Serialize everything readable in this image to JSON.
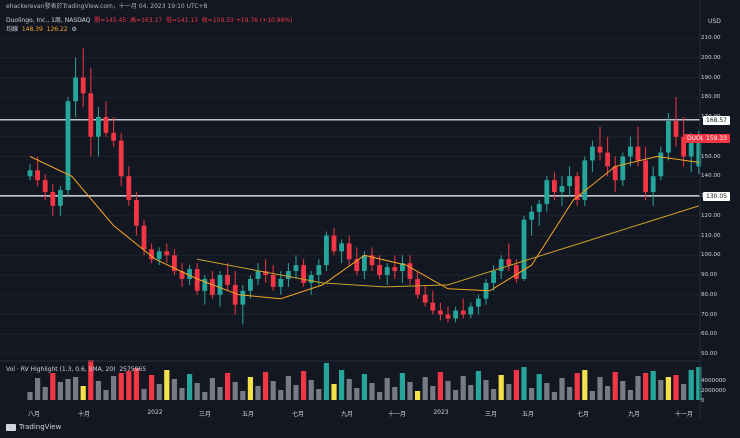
{
  "header": {
    "attribution": "ehackerevan發表於TradingView.com，十一月 04, 2023 19:10 UTC+8",
    "currency": "USD"
  },
  "symbol_info": {
    "name": "Duolingo, Inc., 1周, NASDAQ",
    "open": "開=145.45",
    "high": "高=163.17",
    "low": "低=141.13",
    "close": "收=159.33",
    "change": "+19.76 (+10.98%)"
  },
  "ma_info": {
    "label": "均線",
    "v1": "148.39",
    "v2": "126.22",
    "icon": "settings-icon"
  },
  "volume_info": {
    "label": "Vol · RV Highlight (1.3, 0.6, SMA, 20)",
    "value": "2575965"
  },
  "y_ticks": [
    "210.00",
    "200.00",
    "190.00",
    "180.00",
    "170.00",
    "160.00",
    "150.00",
    "140.00",
    "130.00",
    "120.00",
    "110.00",
    "100.00",
    "90.00",
    "80.00",
    "70.00",
    "60.00",
    "50.00"
  ],
  "vol_ticks": [
    "4000000",
    "2000000",
    "0"
  ],
  "x_ticks": [
    "八月",
    "十月",
    "2022",
    "三月",
    "五月",
    "七月",
    "九月",
    "十一月",
    "2023",
    "三月",
    "五月",
    "七月",
    "九月",
    "十一月"
  ],
  "badges": {
    "upper_level": "168.57",
    "ticker": "DUOL",
    "last_price": "159.33",
    "lower_level": "130.05"
  },
  "footer": {
    "brand": "TradingView"
  },
  "colors": {
    "up": "#26a69a",
    "down": "#f23645",
    "bg": "#131722",
    "ma_fast": "#f5a623",
    "ma_slow": "#c9a227",
    "highlight": "#f5e14a",
    "avg_vol": "#777b85"
  },
  "chart_data": {
    "type": "candlestick",
    "interval": "weekly",
    "ylim": [
      45,
      215
    ],
    "horizontal_levels": [
      168.57,
      130.05
    ],
    "candles": [
      [
        140,
        146,
        138,
        143
      ],
      [
        143,
        150,
        135,
        138
      ],
      [
        138,
        141,
        128,
        132
      ],
      [
        132,
        136,
        120,
        125
      ],
      [
        125,
        135,
        120,
        133
      ],
      [
        133,
        180,
        130,
        178
      ],
      [
        178,
        200,
        170,
        190
      ],
      [
        190,
        205,
        175,
        182
      ],
      [
        182,
        195,
        150,
        160
      ],
      [
        160,
        175,
        150,
        170
      ],
      [
        170,
        178,
        160,
        162
      ],
      [
        162,
        170,
        155,
        158
      ],
      [
        158,
        162,
        135,
        140
      ],
      [
        140,
        145,
        125,
        128
      ],
      [
        128,
        132,
        110,
        115
      ],
      [
        115,
        118,
        100,
        103
      ],
      [
        103,
        106,
        96,
        98
      ],
      [
        98,
        104,
        95,
        102
      ],
      [
        102,
        106,
        96,
        100
      ],
      [
        100,
        103,
        90,
        92
      ],
      [
        92,
        96,
        84,
        88
      ],
      [
        88,
        95,
        85,
        93
      ],
      [
        93,
        96,
        80,
        82
      ],
      [
        82,
        90,
        75,
        88
      ],
      [
        88,
        92,
        78,
        80
      ],
      [
        80,
        92,
        74,
        90
      ],
      [
        90,
        96,
        82,
        85
      ],
      [
        85,
        92,
        70,
        75
      ],
      [
        75,
        85,
        65,
        82
      ],
      [
        82,
        90,
        78,
        88
      ],
      [
        88,
        96,
        85,
        92
      ],
      [
        92,
        98,
        86,
        90
      ],
      [
        90,
        95,
        82,
        84
      ],
      [
        84,
        92,
        80,
        88
      ],
      [
        88,
        96,
        84,
        92
      ],
      [
        92,
        100,
        88,
        95
      ],
      [
        95,
        98,
        84,
        86
      ],
      [
        86,
        92,
        80,
        90
      ],
      [
        90,
        98,
        85,
        95
      ],
      [
        95,
        112,
        92,
        110
      ],
      [
        110,
        114,
        100,
        102
      ],
      [
        102,
        108,
        96,
        106
      ],
      [
        106,
        110,
        95,
        98
      ],
      [
        98,
        104,
        90,
        92
      ],
      [
        92,
        102,
        88,
        100
      ],
      [
        100,
        104,
        92,
        95
      ],
      [
        95,
        100,
        88,
        90
      ],
      [
        90,
        96,
        85,
        94
      ],
      [
        94,
        100,
        88,
        92
      ],
      [
        92,
        100,
        86,
        96
      ],
      [
        96,
        100,
        85,
        88
      ],
      [
        88,
        92,
        78,
        80
      ],
      [
        80,
        85,
        74,
        76
      ],
      [
        76,
        82,
        70,
        72
      ],
      [
        72,
        76,
        67,
        70
      ],
      [
        70,
        74,
        66,
        68
      ],
      [
        68,
        74,
        66,
        72
      ],
      [
        72,
        78,
        68,
        70
      ],
      [
        70,
        76,
        68,
        74
      ],
      [
        74,
        80,
        70,
        78
      ],
      [
        78,
        88,
        75,
        86
      ],
      [
        86,
        95,
        82,
        92
      ],
      [
        92,
        100,
        88,
        98
      ],
      [
        98,
        106,
        92,
        95
      ],
      [
        95,
        98,
        86,
        88
      ],
      [
        88,
        120,
        87,
        118
      ],
      [
        118,
        125,
        110,
        122
      ],
      [
        122,
        128,
        115,
        126
      ],
      [
        126,
        140,
        122,
        138
      ],
      [
        138,
        142,
        128,
        132
      ],
      [
        132,
        140,
        125,
        135
      ],
      [
        135,
        145,
        130,
        140
      ],
      [
        140,
        142,
        125,
        128
      ],
      [
        128,
        150,
        125,
        148
      ],
      [
        148,
        158,
        142,
        155
      ],
      [
        155,
        165,
        148,
        152
      ],
      [
        152,
        160,
        140,
        145
      ],
      [
        145,
        150,
        132,
        138
      ],
      [
        138,
        152,
        135,
        150
      ],
      [
        150,
        160,
        145,
        155
      ],
      [
        155,
        165,
        145,
        148
      ],
      [
        148,
        155,
        128,
        132
      ],
      [
        132,
        145,
        125,
        140
      ],
      [
        140,
        155,
        138,
        152
      ],
      [
        152,
        172,
        148,
        168
      ],
      [
        168,
        180,
        155,
        160
      ],
      [
        160,
        170,
        145,
        150
      ],
      [
        150,
        162,
        142,
        158
      ],
      [
        145,
        163,
        141,
        159
      ]
    ],
    "ma_fast": [
      [
        0,
        150
      ],
      [
        10,
        140
      ],
      [
        20,
        115
      ],
      [
        30,
        98
      ],
      [
        40,
        88
      ],
      [
        50,
        80
      ],
      [
        60,
        78
      ],
      [
        70,
        85
      ],
      [
        80,
        100
      ],
      [
        90,
        95
      ],
      [
        100,
        83
      ],
      [
        110,
        82
      ],
      [
        120,
        95
      ],
      [
        130,
        128
      ],
      [
        140,
        145
      ],
      [
        150,
        150
      ],
      [
        160,
        147
      ]
    ],
    "ma_slow": [
      [
        40,
        98
      ],
      [
        55,
        92
      ],
      [
        70,
        86
      ],
      [
        85,
        84
      ],
      [
        100,
        85
      ],
      [
        115,
        95
      ],
      [
        130,
        105
      ],
      [
        145,
        115
      ],
      [
        160,
        125
      ]
    ]
  }
}
